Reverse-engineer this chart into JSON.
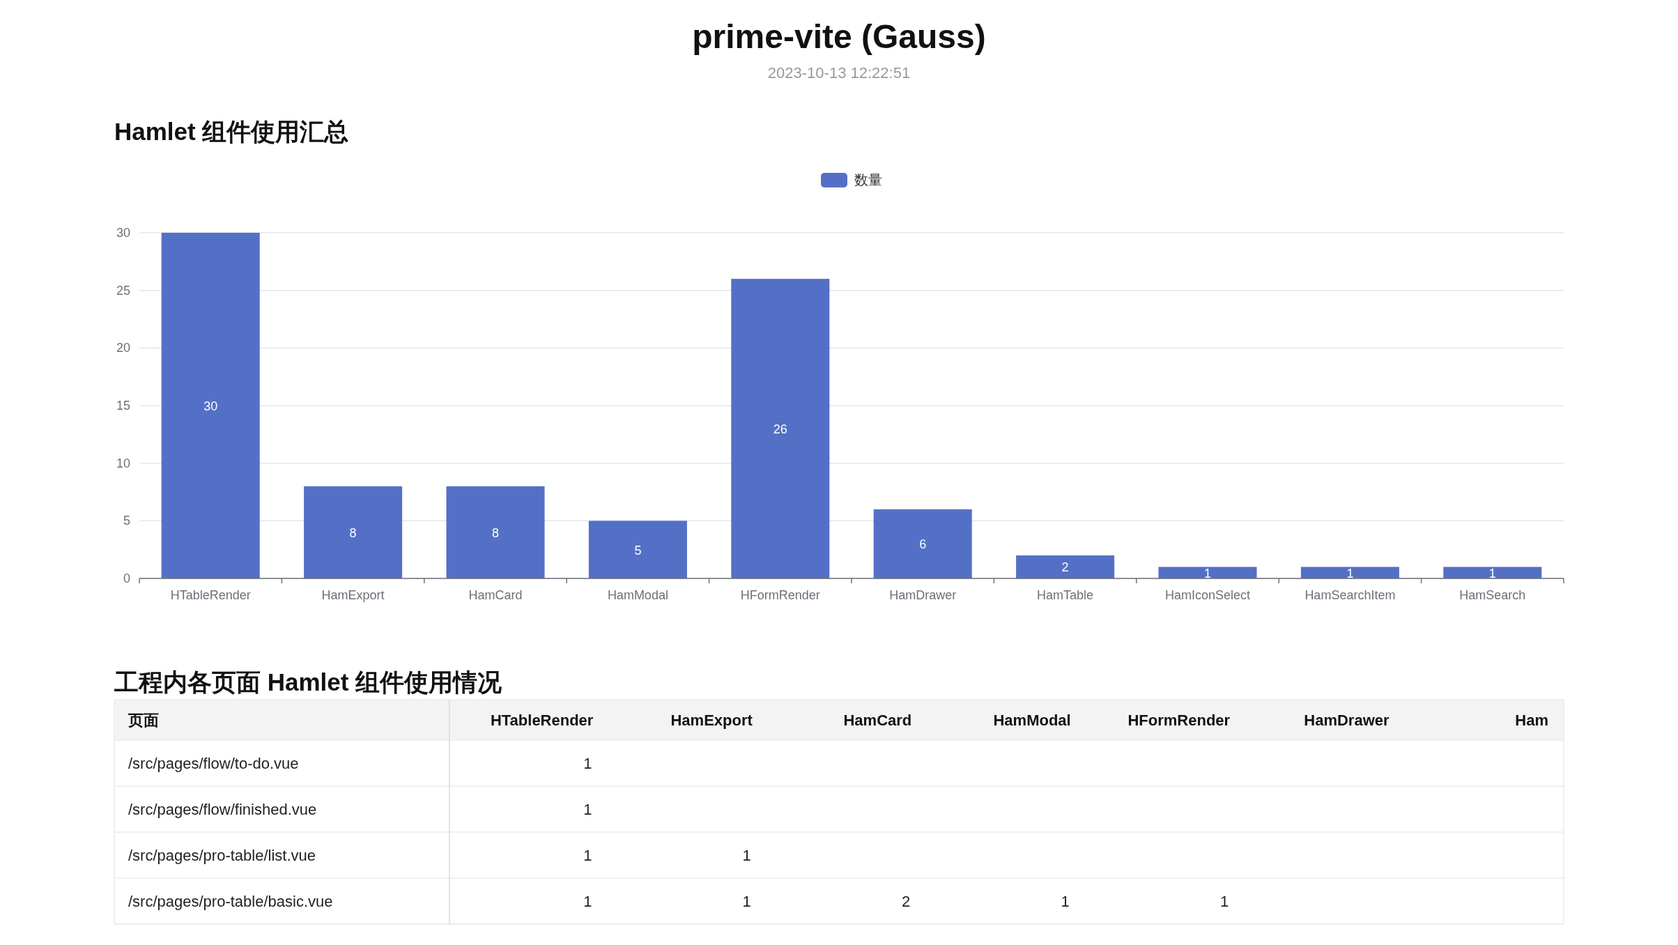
{
  "chart_data": [
    {
      "type": "other",
      "title": "prime-vite (Gauss)",
      "subtitle": "2023-10-13 12:22:51"
    },
    {
      "type": "bar",
      "title": "Hamlet 组件使用汇总",
      "categories": [
        "HTableRender",
        "HamExport",
        "HamCard",
        "HamModal",
        "HFormRender",
        "HamDrawer",
        "HamTable",
        "HamIconSelect",
        "HamSearchItem",
        "HamSearch"
      ],
      "series": [
        {
          "name": "数量",
          "color": "#5470c6",
          "values": [
            30,
            8,
            8,
            5,
            26,
            6,
            2,
            1,
            1,
            1
          ]
        }
      ],
      "ylim": [
        0,
        30
      ],
      "yticks": [
        0,
        5,
        10,
        15,
        20,
        25,
        30
      ],
      "grid": "y",
      "legend": "top",
      "data_labels": true
    },
    {
      "type": "heatmap",
      "title": "工程内各页面 Hamlet 组件使用情况",
      "ylabel": "页面",
      "categories": [
        "HTableRender",
        "HamExport",
        "HamCard",
        "HamModal",
        "HFormRender",
        "HamDrawer",
        "Ham"
      ],
      "y_categories": [
        "/src/pages/flow/to-do.vue",
        "/src/pages/flow/finished.vue",
        "/src/pages/pro-table/list.vue",
        "/src/pages/pro-table/basic.vue"
      ],
      "cells": [
        [
          1,
          null,
          null,
          null,
          null,
          null,
          null
        ],
        [
          1,
          null,
          null,
          null,
          null,
          null,
          null
        ],
        [
          1,
          1,
          null,
          null,
          null,
          null,
          null
        ],
        [
          1,
          1,
          2,
          1,
          1,
          null,
          null
        ]
      ],
      "data_labels": true
    }
  ]
}
